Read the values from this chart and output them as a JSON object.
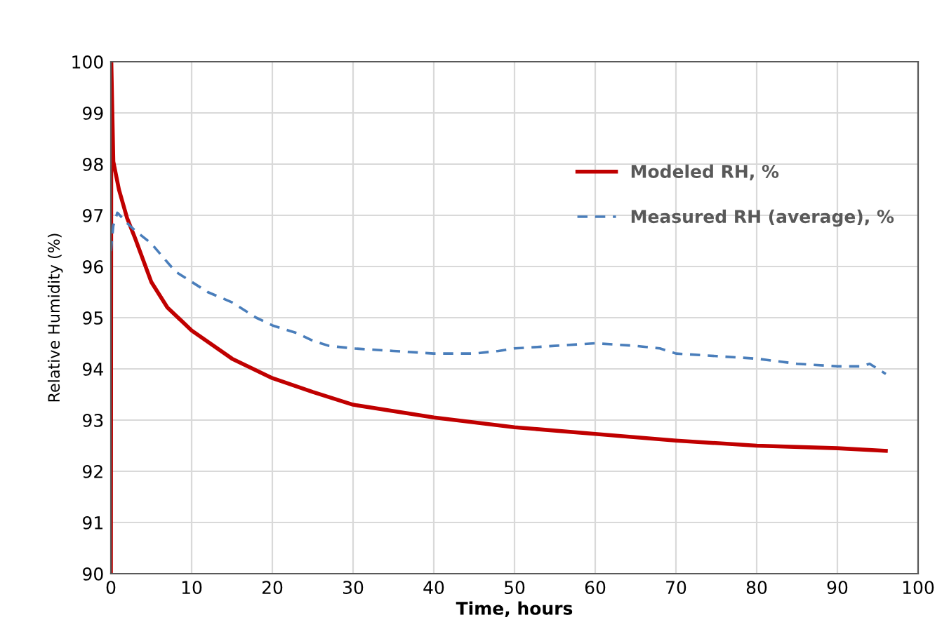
{
  "chart_data": {
    "type": "line",
    "xlabel": "Time, hours",
    "ylabel": "Relative Humidity (%)",
    "xlim": [
      0,
      100
    ],
    "xticks": [
      0,
      10,
      20,
      30,
      40,
      50,
      60,
      70,
      80,
      90,
      100
    ],
    "ylim": [
      90,
      100
    ],
    "yticks": [
      90,
      91,
      92,
      93,
      94,
      95,
      96,
      97,
      98,
      99,
      100
    ],
    "grid": true,
    "legend": "top right",
    "marker": "none",
    "series": [
      {
        "name": "Modeled RH, %",
        "color": "#c00000",
        "line_style": "solid",
        "x": [
          0,
          0.05,
          0.3,
          1,
          2,
          3,
          5,
          7,
          10,
          15,
          20,
          25,
          30,
          40,
          50,
          60,
          70,
          80,
          90,
          96
        ],
        "values": [
          90,
          100,
          98.05,
          97.5,
          96.95,
          96.55,
          95.7,
          95.2,
          94.75,
          94.2,
          93.82,
          93.55,
          93.3,
          93.05,
          92.86,
          92.73,
          92.6,
          92.5,
          92.45,
          92.4
        ]
      },
      {
        "name": "Measured RH (average), %",
        "color": "#4a7ebb",
        "line_style": "dashed",
        "x": [
          0,
          0.3,
          0.8,
          2,
          3,
          5,
          8,
          10,
          12,
          15,
          18,
          20,
          23,
          25,
          27,
          30,
          35,
          40,
          45,
          48,
          50,
          55,
          60,
          65,
          68,
          70,
          75,
          80,
          85,
          90,
          93,
          94,
          96
        ],
        "values": [
          96.3,
          96.8,
          97.05,
          96.85,
          96.7,
          96.45,
          95.9,
          95.7,
          95.5,
          95.3,
          95.0,
          94.85,
          94.7,
          94.55,
          94.45,
          94.4,
          94.35,
          94.3,
          94.3,
          94.35,
          94.4,
          94.45,
          94.5,
          94.45,
          94.4,
          94.3,
          94.25,
          94.2,
          94.1,
          94.05,
          94.05,
          94.1,
          93.9
        ]
      }
    ]
  }
}
